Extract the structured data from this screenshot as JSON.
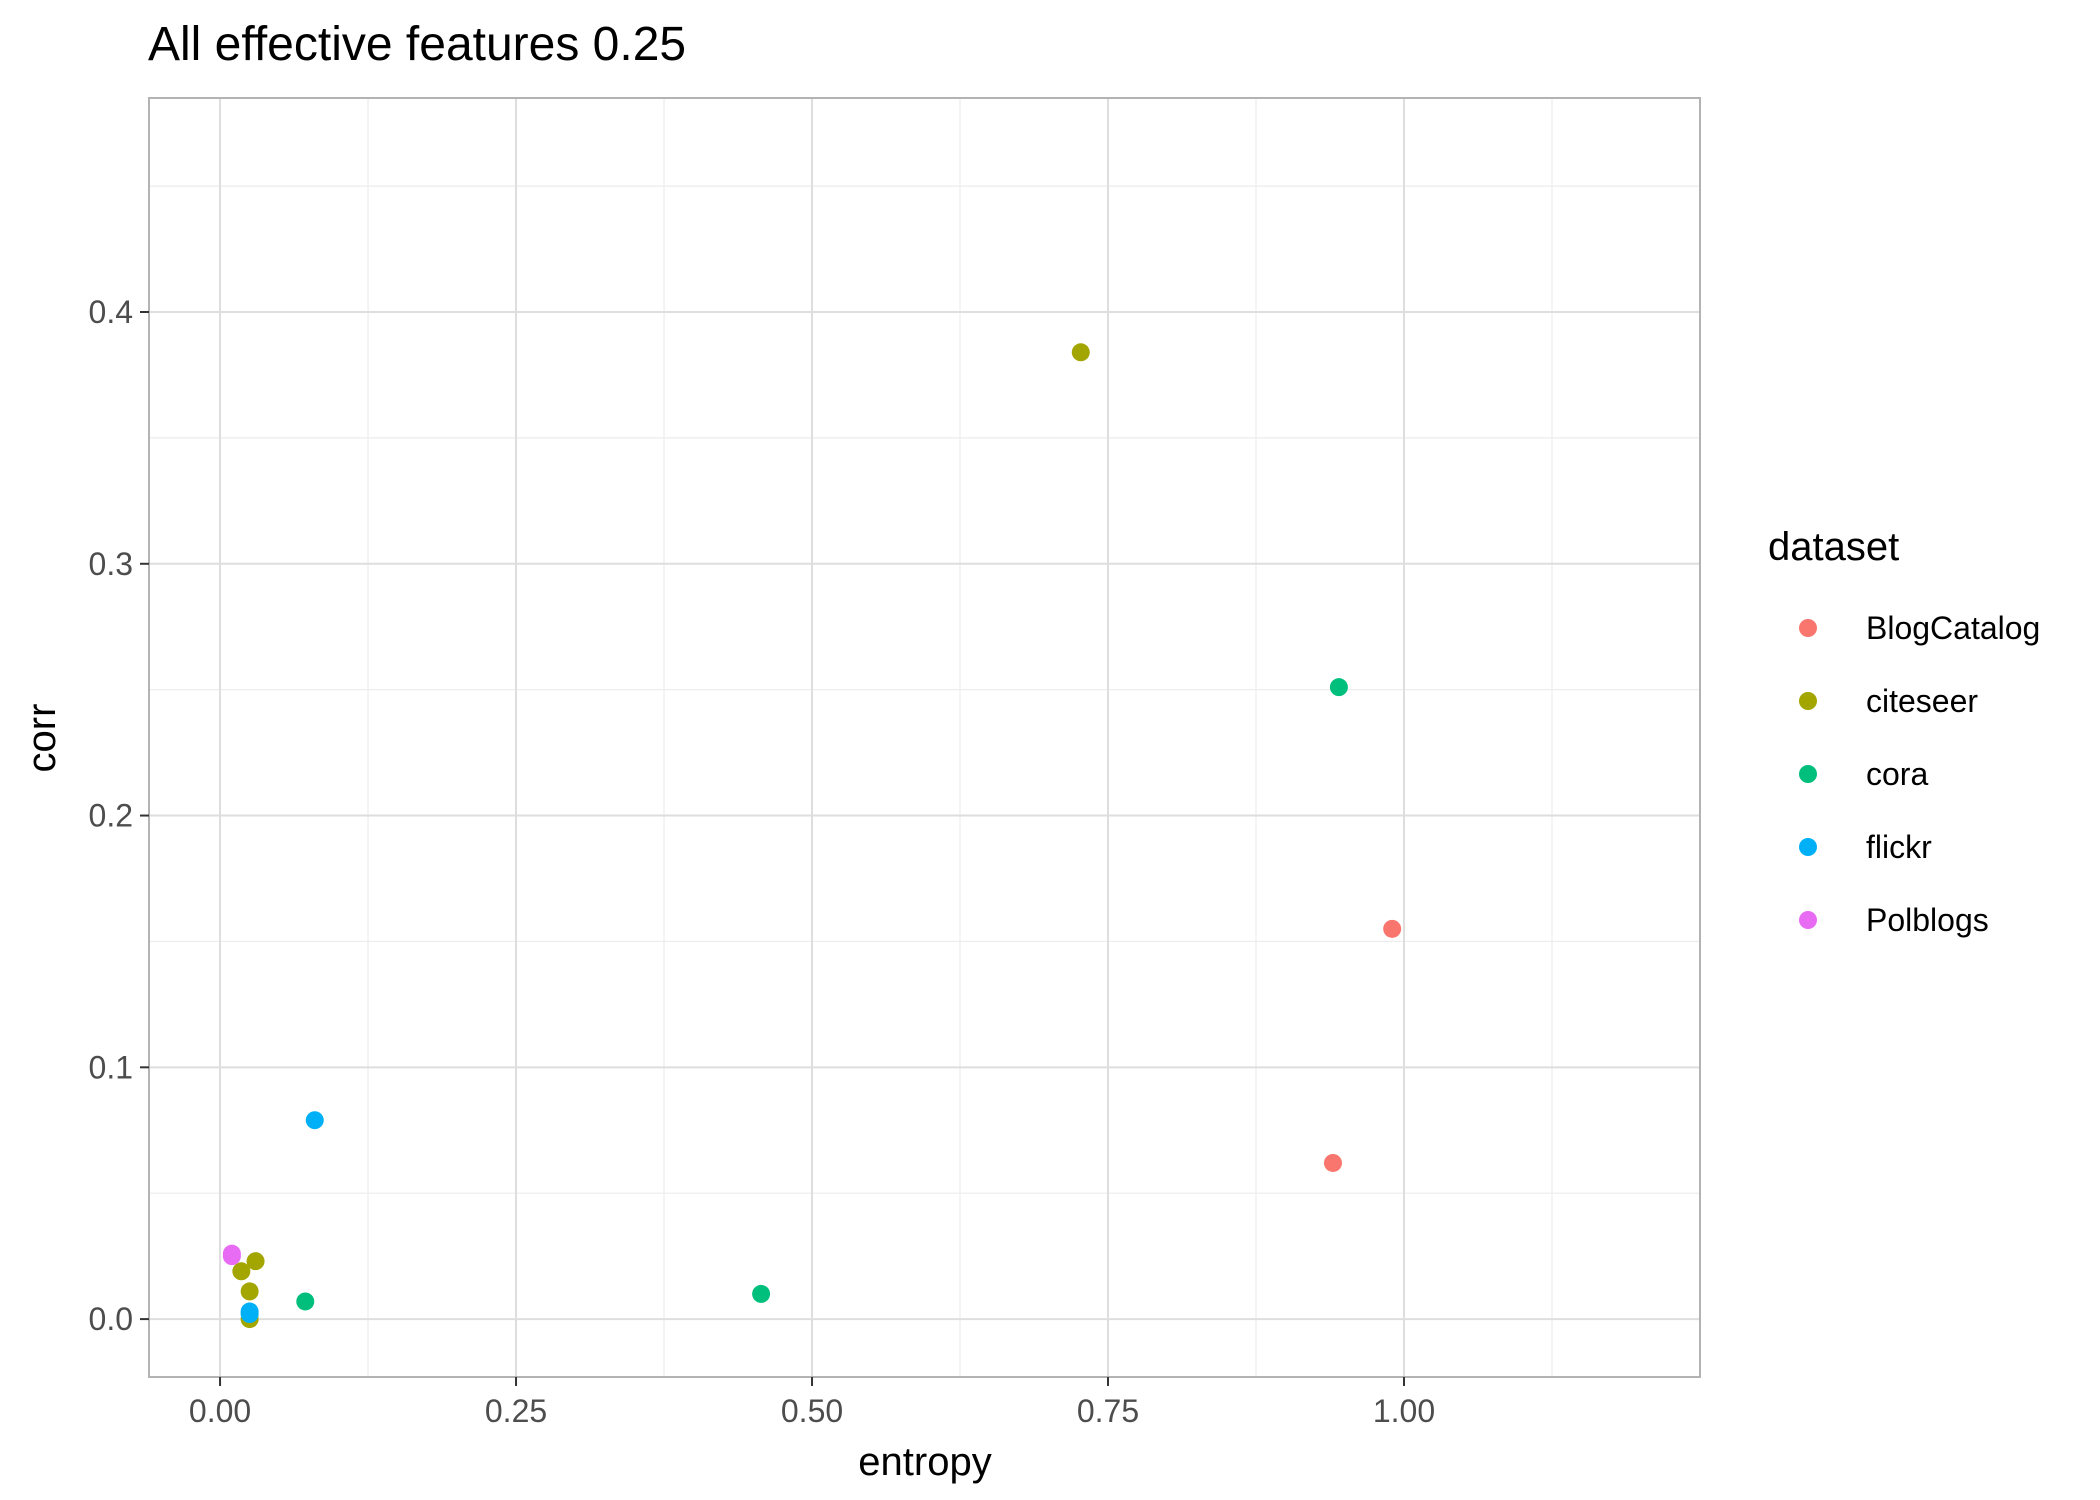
{
  "chart_data": {
    "type": "scatter",
    "title": "All effective features 0.25",
    "xlabel": "entropy",
    "ylabel": "corr",
    "xlim": [
      -0.06,
      1.25
    ],
    "ylim": [
      -0.023,
      0.485
    ],
    "x_ticks": [
      0.0,
      0.25,
      0.5,
      0.75,
      1.0
    ],
    "x_tick_labels": [
      "0.00",
      "0.25",
      "0.50",
      "0.75",
      "1.00"
    ],
    "y_ticks": [
      0.0,
      0.1,
      0.2,
      0.3,
      0.4
    ],
    "y_tick_labels": [
      "0.0",
      "0.1",
      "0.2",
      "0.3",
      "0.4"
    ],
    "grid": true,
    "legend_title": "dataset",
    "legend_position": "right",
    "series": [
      {
        "name": "BlogCatalog",
        "color": "#F8766D",
        "points": [
          [
            0.99,
            0.155
          ],
          [
            0.94,
            0.062
          ]
        ]
      },
      {
        "name": "citeseer",
        "color": "#A3A500",
        "points": [
          [
            0.727,
            0.384
          ],
          [
            0.018,
            0.019
          ],
          [
            0.03,
            0.023
          ],
          [
            0.025,
            0.011
          ],
          [
            0.025,
            0.0
          ]
        ]
      },
      {
        "name": "cora",
        "color": "#00BF7D",
        "points": [
          [
            0.945,
            0.251
          ],
          [
            0.457,
            0.01
          ],
          [
            0.072,
            0.007
          ]
        ]
      },
      {
        "name": "flickr",
        "color": "#00B0F6",
        "points": [
          [
            0.08,
            0.079
          ],
          [
            0.025,
            0.003
          ],
          [
            0.025,
            0.002
          ]
        ]
      },
      {
        "name": "Polblogs",
        "color": "#E76BF3",
        "points": [
          [
            0.01,
            0.026
          ],
          [
            0.01,
            0.025
          ]
        ]
      }
    ]
  }
}
